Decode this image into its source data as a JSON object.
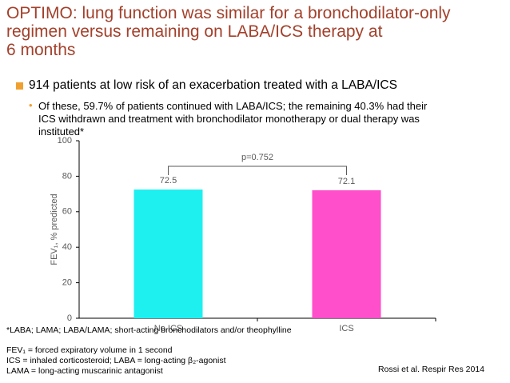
{
  "title_lines": [
    "OPTIMO: lung function was similar for a bronchodilator-only",
    "regimen versus remaining on LABA/ICS therapy at",
    "6 months"
  ],
  "bullet": "914 patients at low risk of an exacerbation treated with a LABA/ICS",
  "sub_bullet_lines": [
    "Of these, 59.7% of patients continued with LABA/ICS; the remaining 40.3% had their",
    "ICS withdrawn and treatment with bronchodilator monotherapy or dual therapy was",
    "instituted*"
  ],
  "chart_data": {
    "type": "bar",
    "y_label": "FEV₁, % predicted",
    "categories": [
      "No ICS",
      "ICS"
    ],
    "values": [
      72.5,
      72.1
    ],
    "colors": [
      "#1ef0f0",
      "#ff4fcb"
    ],
    "ylim": [
      0,
      100
    ],
    "yticks": [
      0,
      20,
      40,
      60,
      80,
      100
    ],
    "annotation": "p=0.752"
  },
  "footnote": "*LABA; LAMA; LABA/LAMA; short-acting bronchodilators and/or theophylline",
  "abbreviations": [
    "FEV₁ = forced expiratory volume in 1 second",
    "ICS = inhaled corticosteroid; LABA = long-acting β₂-agonist",
    "LAMA = long-acting muscarinic antagonist"
  ],
  "citation": "Rossi et al. Respir Res 2014"
}
